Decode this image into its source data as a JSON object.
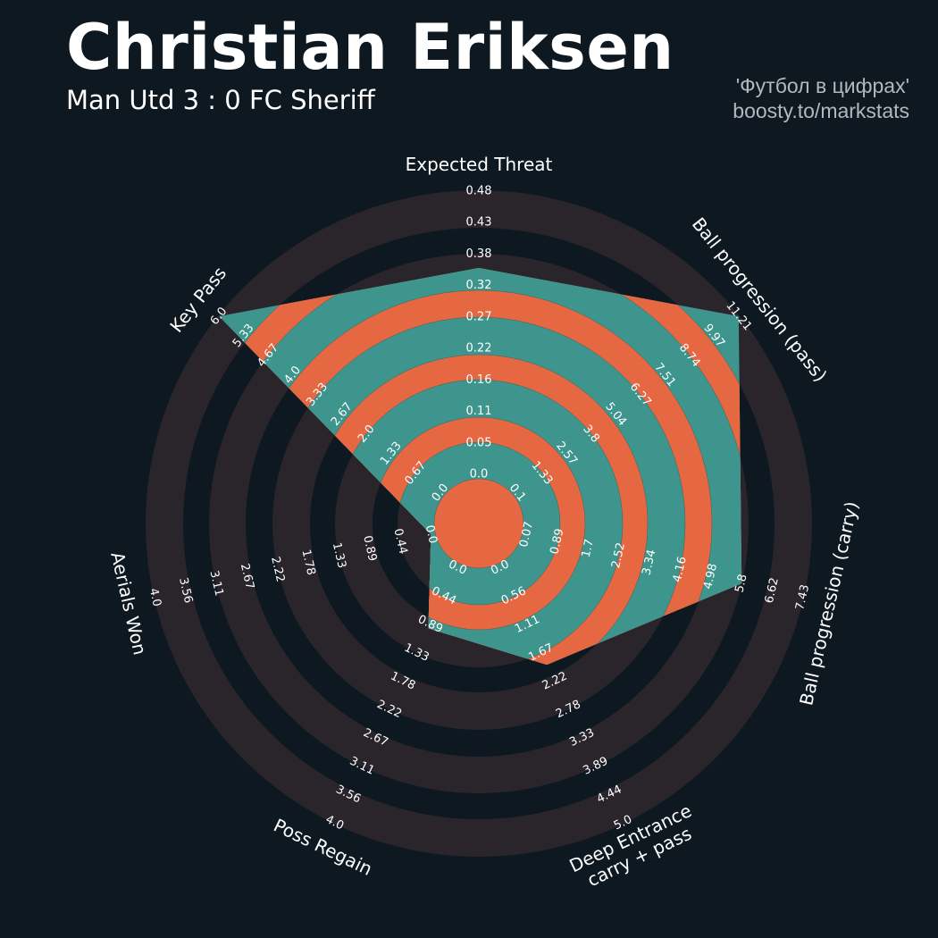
{
  "header": {
    "title": "Christian Eriksen",
    "subtitle": "Man Utd 3 : 0 FC Sheriff",
    "credit_line1": "'Футбол в цифрах'",
    "credit_line2": "boosty.to/markstats"
  },
  "chart_data": {
    "type": "radar",
    "params": [
      "Expected Threat",
      "Ball progression (pass)",
      "Ball progression (carry)",
      "Deep Entrance\ncarry + pass",
      "Poss Regain",
      "Aerials Won",
      "Key Pass"
    ],
    "ranges": [
      [
        0.0,
        0.48
      ],
      [
        0.1,
        11.21
      ],
      [
        0.07,
        7.43
      ],
      [
        0.0,
        5.0
      ],
      [
        0.0,
        4.0
      ],
      [
        0.0,
        4.0
      ],
      [
        0.0,
        6.0
      ]
    ],
    "tick_labels": [
      [
        "0.0",
        "0.05",
        "0.11",
        "0.16",
        "0.22",
        "0.27",
        "0.32",
        "0.38",
        "0.43",
        "0.48"
      ],
      [
        "0.1",
        "1.33",
        "2.57",
        "3.8",
        "5.04",
        "6.27",
        "7.51",
        "8.74",
        "9.97",
        "11.21"
      ],
      [
        "0.07",
        "0.89",
        "1.7",
        "2.52",
        "3.34",
        "4.16",
        "4.98",
        "5.8",
        "6.62",
        "7.43"
      ],
      [
        "0.0",
        "0.56",
        "1.11",
        "1.67",
        "2.22",
        "2.78",
        "3.33",
        "3.89",
        "4.44",
        "5.0"
      ],
      [
        "0.0",
        "0.44",
        "0.89",
        "1.33",
        "1.78",
        "2.22",
        "2.67",
        "3.11",
        "3.56",
        "4.0"
      ],
      [
        "0.0",
        "0.44",
        "0.89",
        "1.33",
        "1.78",
        "2.22",
        "2.67",
        "3.11",
        "3.56",
        "4.0"
      ],
      [
        "0.0",
        "0.67",
        "1.33",
        "2.0",
        "2.67",
        "3.33",
        "4.0",
        "4.67",
        "5.33",
        "6.0"
      ]
    ],
    "values": [
      0.35,
      11.21,
      5.8,
      1.9,
      0.95,
      0.0,
      6.0
    ],
    "colors": {
      "background": "#0e1820",
      "ring": "#29252b",
      "radar_primary": "#3e958e",
      "radar_alt": "#e66842",
      "text": "#ffffff"
    }
  }
}
